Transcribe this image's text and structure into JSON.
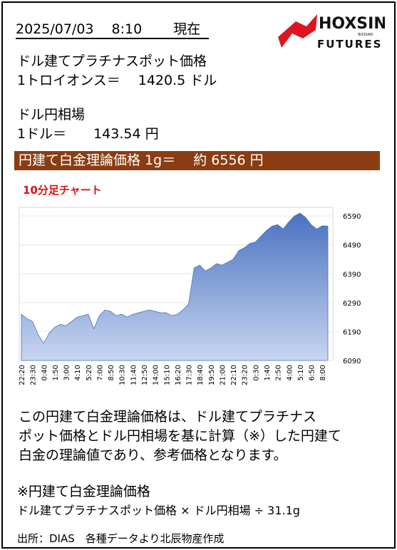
{
  "header": {
    "datetime": "2025/07/03　 8:10　　 現在",
    "logo": {
      "name": "HOXSIN",
      "sub": "BUSSAN",
      "tag": "FUTURES"
    }
  },
  "quotes": [
    {
      "label": "ドル建てプラチナスポット価格",
      "value": "1トロイオンス＝　 1420.5 ドル"
    },
    {
      "label": "ドル円相場",
      "value": "1ドル＝　　143.54 円"
    }
  ],
  "highlight": "円建て白金理論価格 1g＝　 約 6556 円",
  "chart_data": {
    "type": "area",
    "title": "10分足チャート",
    "color": "#4a72c2",
    "grid": true,
    "categories": [
      "22:20",
      null,
      "23:30",
      null,
      "0:40",
      null,
      "1:50",
      null,
      "3:00",
      null,
      "4:10",
      null,
      "5:20",
      null,
      "7:00",
      null,
      "8:50",
      null,
      "10:30",
      null,
      "11:40",
      null,
      "12:50",
      null,
      "14:00",
      null,
      "15:10",
      null,
      "16:20",
      null,
      "17:30",
      null,
      "18:40",
      null,
      "19:50",
      null,
      "21:00",
      null,
      "22:10",
      null,
      "23:20",
      null,
      "0:30",
      null,
      "1:40",
      null,
      "2:50",
      null,
      "4:00",
      null,
      "5:10",
      null,
      "6:50",
      null,
      "8:00",
      null
    ],
    "values": [
      6250,
      6235,
      6225,
      6180,
      6150,
      6185,
      6205,
      6215,
      6210,
      6225,
      6240,
      6245,
      6250,
      6200,
      6245,
      6265,
      6260,
      6245,
      6250,
      6240,
      6250,
      6255,
      6260,
      6265,
      6260,
      6255,
      6255,
      6245,
      6250,
      6265,
      6285,
      6410,
      6420,
      6400,
      6410,
      6425,
      6420,
      6430,
      6440,
      6470,
      6480,
      6495,
      6500,
      6520,
      6540,
      6555,
      6560,
      6545,
      6570,
      6590,
      6600,
      6585,
      6560,
      6545,
      6556,
      6555
    ],
    "ylim": [
      6090,
      6620
    ],
    "yticks": [
      6090,
      6190,
      6290,
      6390,
      6490,
      6590
    ]
  },
  "description": [
    "この円建て白金理論価格は、ドル建てプラチナス",
    "ポット価格とドル円相場を基に計算（※）した円建て",
    "白金の理論値であり、参考価格となります。"
  ],
  "formula": {
    "title": "※円建て白金理論価格",
    "text": "ドル建てプラチナスポット価格 × ドル円相場 ÷ 31.1g"
  },
  "source": "出所：DIAS　各種データより北辰物産作成"
}
